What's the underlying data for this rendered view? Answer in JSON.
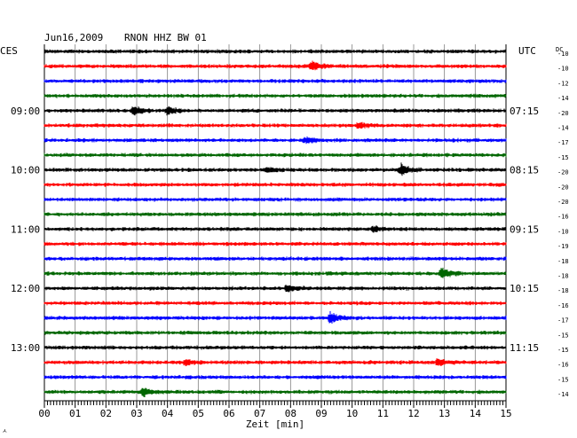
{
  "header": {
    "date": "Jun16,2009",
    "station": "RNON HHZ BW 01",
    "left_timezone": "CES",
    "right_timezone": "UTC",
    "dc_label": "DC"
  },
  "colors": {
    "trace_cycle": [
      "#000000",
      "#ff0000",
      "#0000ff",
      "#006600"
    ],
    "grid": "#808080",
    "axis": "#000000"
  },
  "chart_data": {
    "type": "line",
    "title": "Jun16,2009   RNON HHZ BW 01",
    "xlabel": "Zeit [min]",
    "xlim": [
      0,
      15
    ],
    "x_ticks": [
      "00",
      "01",
      "02",
      "03",
      "04",
      "05",
      "06",
      "07",
      "08",
      "09",
      "10",
      "11",
      "12",
      "13",
      "14",
      "15"
    ],
    "left_hour_labels": [
      {
        "row": 4,
        "label": "09:00"
      },
      {
        "row": 8,
        "label": "10:00"
      },
      {
        "row": 12,
        "label": "11:00"
      },
      {
        "row": 16,
        "label": "12:00"
      },
      {
        "row": 20,
        "label": "13:00"
      }
    ],
    "right_hour_labels": [
      {
        "row": 4,
        "label": "07:15"
      },
      {
        "row": 8,
        "label": "08:15"
      },
      {
        "row": 12,
        "label": "09:15"
      },
      {
        "row": 16,
        "label": "10:15"
      },
      {
        "row": 20,
        "label": "11:15"
      }
    ],
    "dc_offsets": [
      -10,
      -10,
      -12,
      -14,
      -20,
      -14,
      -17,
      -15,
      -20,
      -20,
      -20,
      -16,
      -10,
      -19,
      -18,
      -18,
      -18,
      -16,
      -17,
      -15,
      -15,
      -16,
      -15,
      -14
    ],
    "events": [
      {
        "row": 1,
        "minute": 8.7,
        "amp": 5
      },
      {
        "row": 4,
        "minute": 2.9,
        "amp": 6
      },
      {
        "row": 4,
        "minute": 4.0,
        "amp": 4
      },
      {
        "row": 5,
        "minute": 10.2,
        "amp": 3
      },
      {
        "row": 6,
        "minute": 8.5,
        "amp": 3
      },
      {
        "row": 8,
        "minute": 11.6,
        "amp": 6
      },
      {
        "row": 8,
        "minute": 7.2,
        "amp": 3
      },
      {
        "row": 12,
        "minute": 10.7,
        "amp": 3
      },
      {
        "row": 15,
        "minute": 12.9,
        "amp": 6
      },
      {
        "row": 16,
        "minute": 7.9,
        "amp": 4
      },
      {
        "row": 18,
        "minute": 9.3,
        "amp": 6
      },
      {
        "row": 21,
        "minute": 4.6,
        "amp": 3
      },
      {
        "row": 21,
        "minute": 12.8,
        "amp": 4
      },
      {
        "row": 23,
        "minute": 3.2,
        "amp": 5
      }
    ]
  }
}
